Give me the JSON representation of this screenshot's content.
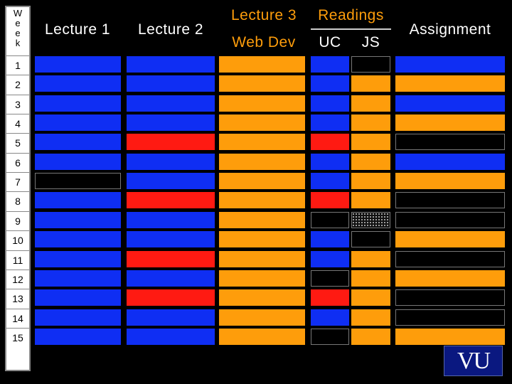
{
  "headers": {
    "week": [
      "W",
      "e",
      "e",
      "k"
    ],
    "lecture1": "Lecture 1",
    "lecture2": "Lecture 2",
    "lecture3": "Lecture 3",
    "web_dev": "Web Dev",
    "readings": "Readings",
    "uc": "UC",
    "js": "JS",
    "assignment": "Assignment"
  },
  "weeks": [
    "1",
    "2",
    "3",
    "4",
    "5",
    "6",
    "7",
    "8",
    "9",
    "10",
    "11",
    "12",
    "13",
    "14",
    "15"
  ],
  "grid": [
    {
      "lecture1": "blue",
      "lecture2": "blue",
      "lecture3": "orange",
      "uc": "blue",
      "js": "black",
      "assignment": "blue"
    },
    {
      "lecture1": "blue",
      "lecture2": "blue",
      "lecture3": "orange",
      "uc": "blue",
      "js": "orange",
      "assignment": "orange"
    },
    {
      "lecture1": "blue",
      "lecture2": "blue",
      "lecture3": "orange",
      "uc": "blue",
      "js": "orange",
      "assignment": "blue"
    },
    {
      "lecture1": "blue",
      "lecture2": "blue",
      "lecture3": "orange",
      "uc": "blue",
      "js": "orange",
      "assignment": "orange"
    },
    {
      "lecture1": "blue",
      "lecture2": "red",
      "lecture3": "orange",
      "uc": "red",
      "js": "orange",
      "assignment": "black"
    },
    {
      "lecture1": "blue",
      "lecture2": "blue",
      "lecture3": "orange",
      "uc": "blue",
      "js": "orange",
      "assignment": "blue"
    },
    {
      "lecture1": "black",
      "lecture2": "blue",
      "lecture3": "orange",
      "uc": "blue",
      "js": "orange",
      "assignment": "orange"
    },
    {
      "lecture1": "blue",
      "lecture2": "red",
      "lecture3": "orange",
      "uc": "red",
      "js": "orange",
      "assignment": "black"
    },
    {
      "lecture1": "blue",
      "lecture2": "blue",
      "lecture3": "orange",
      "uc": "black",
      "js": "dots",
      "assignment": "black"
    },
    {
      "lecture1": "blue",
      "lecture2": "blue",
      "lecture3": "orange",
      "uc": "blue",
      "js": "black",
      "assignment": "orange"
    },
    {
      "lecture1": "blue",
      "lecture2": "red",
      "lecture3": "orange",
      "uc": "blue",
      "js": "orange",
      "assignment": "black"
    },
    {
      "lecture1": "blue",
      "lecture2": "blue",
      "lecture3": "orange",
      "uc": "black",
      "js": "orange",
      "assignment": "orange"
    },
    {
      "lecture1": "blue",
      "lecture2": "red",
      "lecture3": "orange",
      "uc": "red",
      "js": "orange",
      "assignment": "black"
    },
    {
      "lecture1": "blue",
      "lecture2": "blue",
      "lecture3": "orange",
      "uc": "blue",
      "js": "orange",
      "assignment": "black"
    },
    {
      "lecture1": "blue",
      "lecture2": "blue",
      "lecture3": "orange",
      "uc": "black",
      "js": "orange",
      "assignment": "orange"
    }
  ],
  "colors": {
    "blue": "#0f2ef3",
    "red": "#ff1a12",
    "orange": "#fe9d0b",
    "black": "#000000",
    "header_orange": "#fe9d0b",
    "header_white": "#ffffff"
  },
  "logo": {
    "text": "VU"
  }
}
